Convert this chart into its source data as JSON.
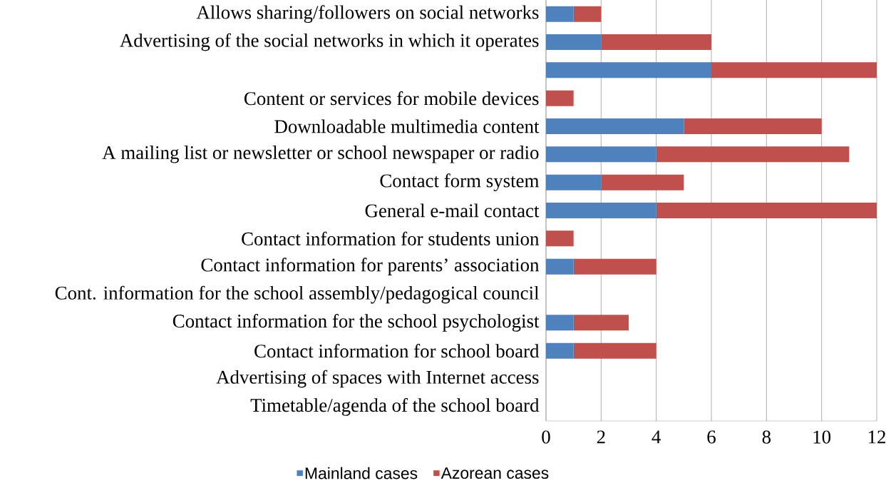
{
  "chart_data": {
    "type": "bar",
    "orientation": "horizontal",
    "stacked": true,
    "categories": [
      "Allows sharing/followers on social networks",
      "Advertising of the social networks in which it operates",
      null,
      "Content or services for mobile devices",
      "Downloadable multimedia content",
      "A mailing list or newsletter or school newspaper or radio",
      "Contact form system",
      "General  e-mail contact",
      "Contact information for students union",
      "Contact information for parents’ association",
      "Cont. information for the school assembly/pedagogical council",
      "Contact information for the school psychologist",
      "Contact information for school board",
      "Advertising of spaces with Internet access",
      "Timetable/agenda of the school board"
    ],
    "series": [
      {
        "name": "Mainland cases",
        "color": "#4f81bd",
        "values": [
          1,
          2,
          6,
          0,
          5,
          4,
          2,
          4,
          0,
          1,
          0,
          1,
          1,
          0,
          0
        ]
      },
      {
        "name": "Azorean cases",
        "color": "#c0504d",
        "values": [
          1,
          4,
          6,
          1,
          5,
          7,
          3,
          8,
          1,
          3,
          0,
          2,
          3,
          0,
          0
        ]
      }
    ],
    "xlim": [
      0,
      12
    ],
    "xticks": [
      0,
      2,
      4,
      6,
      8,
      10,
      12
    ],
    "grid": "x",
    "legend": "bottom"
  }
}
